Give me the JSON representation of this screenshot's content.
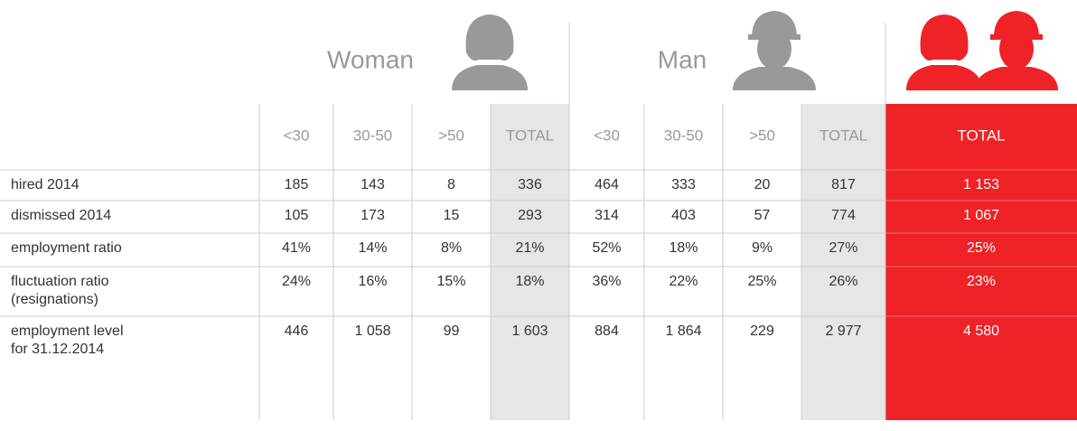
{
  "groups": [
    {
      "title": "Woman"
    },
    {
      "title": "Man"
    }
  ],
  "columns": [
    "<30",
    "30-50",
    ">50",
    "TOTAL",
    "<30",
    "30-50",
    ">50",
    "TOTAL",
    "TOTAL"
  ],
  "rows": [
    {
      "label": [
        "hired 2014"
      ],
      "values": [
        "185",
        "143",
        "8",
        "336",
        "464",
        "333",
        "20",
        "817",
        "1 153"
      ]
    },
    {
      "label": [
        "dismissed 2014"
      ],
      "values": [
        "105",
        "173",
        "15",
        "293",
        "314",
        "403",
        "57",
        "774",
        "1 067"
      ]
    },
    {
      "label": [
        "employment ratio"
      ],
      "values": [
        "41%",
        "14%",
        "8%",
        "21%",
        "52%",
        "18%",
        "9%",
        "27%",
        "25%"
      ]
    },
    {
      "label": [
        "fluctuation ratio",
        "(resignations)"
      ],
      "values": [
        "24%",
        "16%",
        "15%",
        "18%",
        "36%",
        "22%",
        "25%",
        "26%",
        "23%"
      ]
    },
    {
      "label": [
        "employment level",
        "for 31.12.2014"
      ],
      "values": [
        "446",
        "1 058",
        "99",
        "1 603",
        "884",
        "1 864",
        "229",
        "2 977",
        "4 580"
      ]
    }
  ]
}
